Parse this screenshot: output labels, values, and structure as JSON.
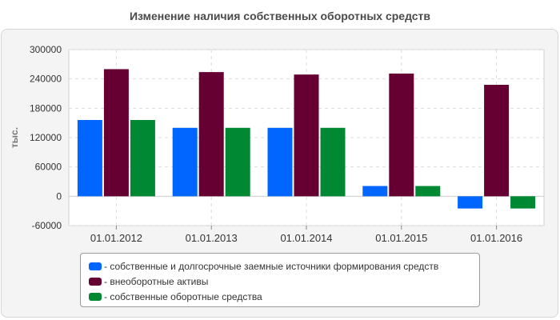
{
  "chart_data": {
    "type": "bar",
    "title": "Изменение наличия собственных оборотных средств",
    "ylabel": "тыс.",
    "xlabel": "",
    "categories": [
      "01.01.2012",
      "01.01.2013",
      "01.01.2014",
      "01.01.2015",
      "01.01.2016"
    ],
    "yticks": [
      "300000",
      "240000",
      "180000",
      "120000",
      "60000",
      "0",
      "-60000"
    ],
    "ylim": [
      -60000,
      300000
    ],
    "grid": true,
    "legend_position": "bottom",
    "series": [
      {
        "name": "- собственные и долгосрочные заемные источники формирования средств",
        "color": "#0066ff",
        "values": [
          156000,
          140000,
          140000,
          21000,
          -25000
        ]
      },
      {
        "name": "- внеоборотные активы",
        "color": "#660033",
        "values": [
          260000,
          254000,
          249000,
          251000,
          228000
        ]
      },
      {
        "name": "- собственные оборотные средства",
        "color": "#008833",
        "values": [
          156000,
          140000,
          140000,
          21000,
          -25000
        ]
      }
    ]
  }
}
